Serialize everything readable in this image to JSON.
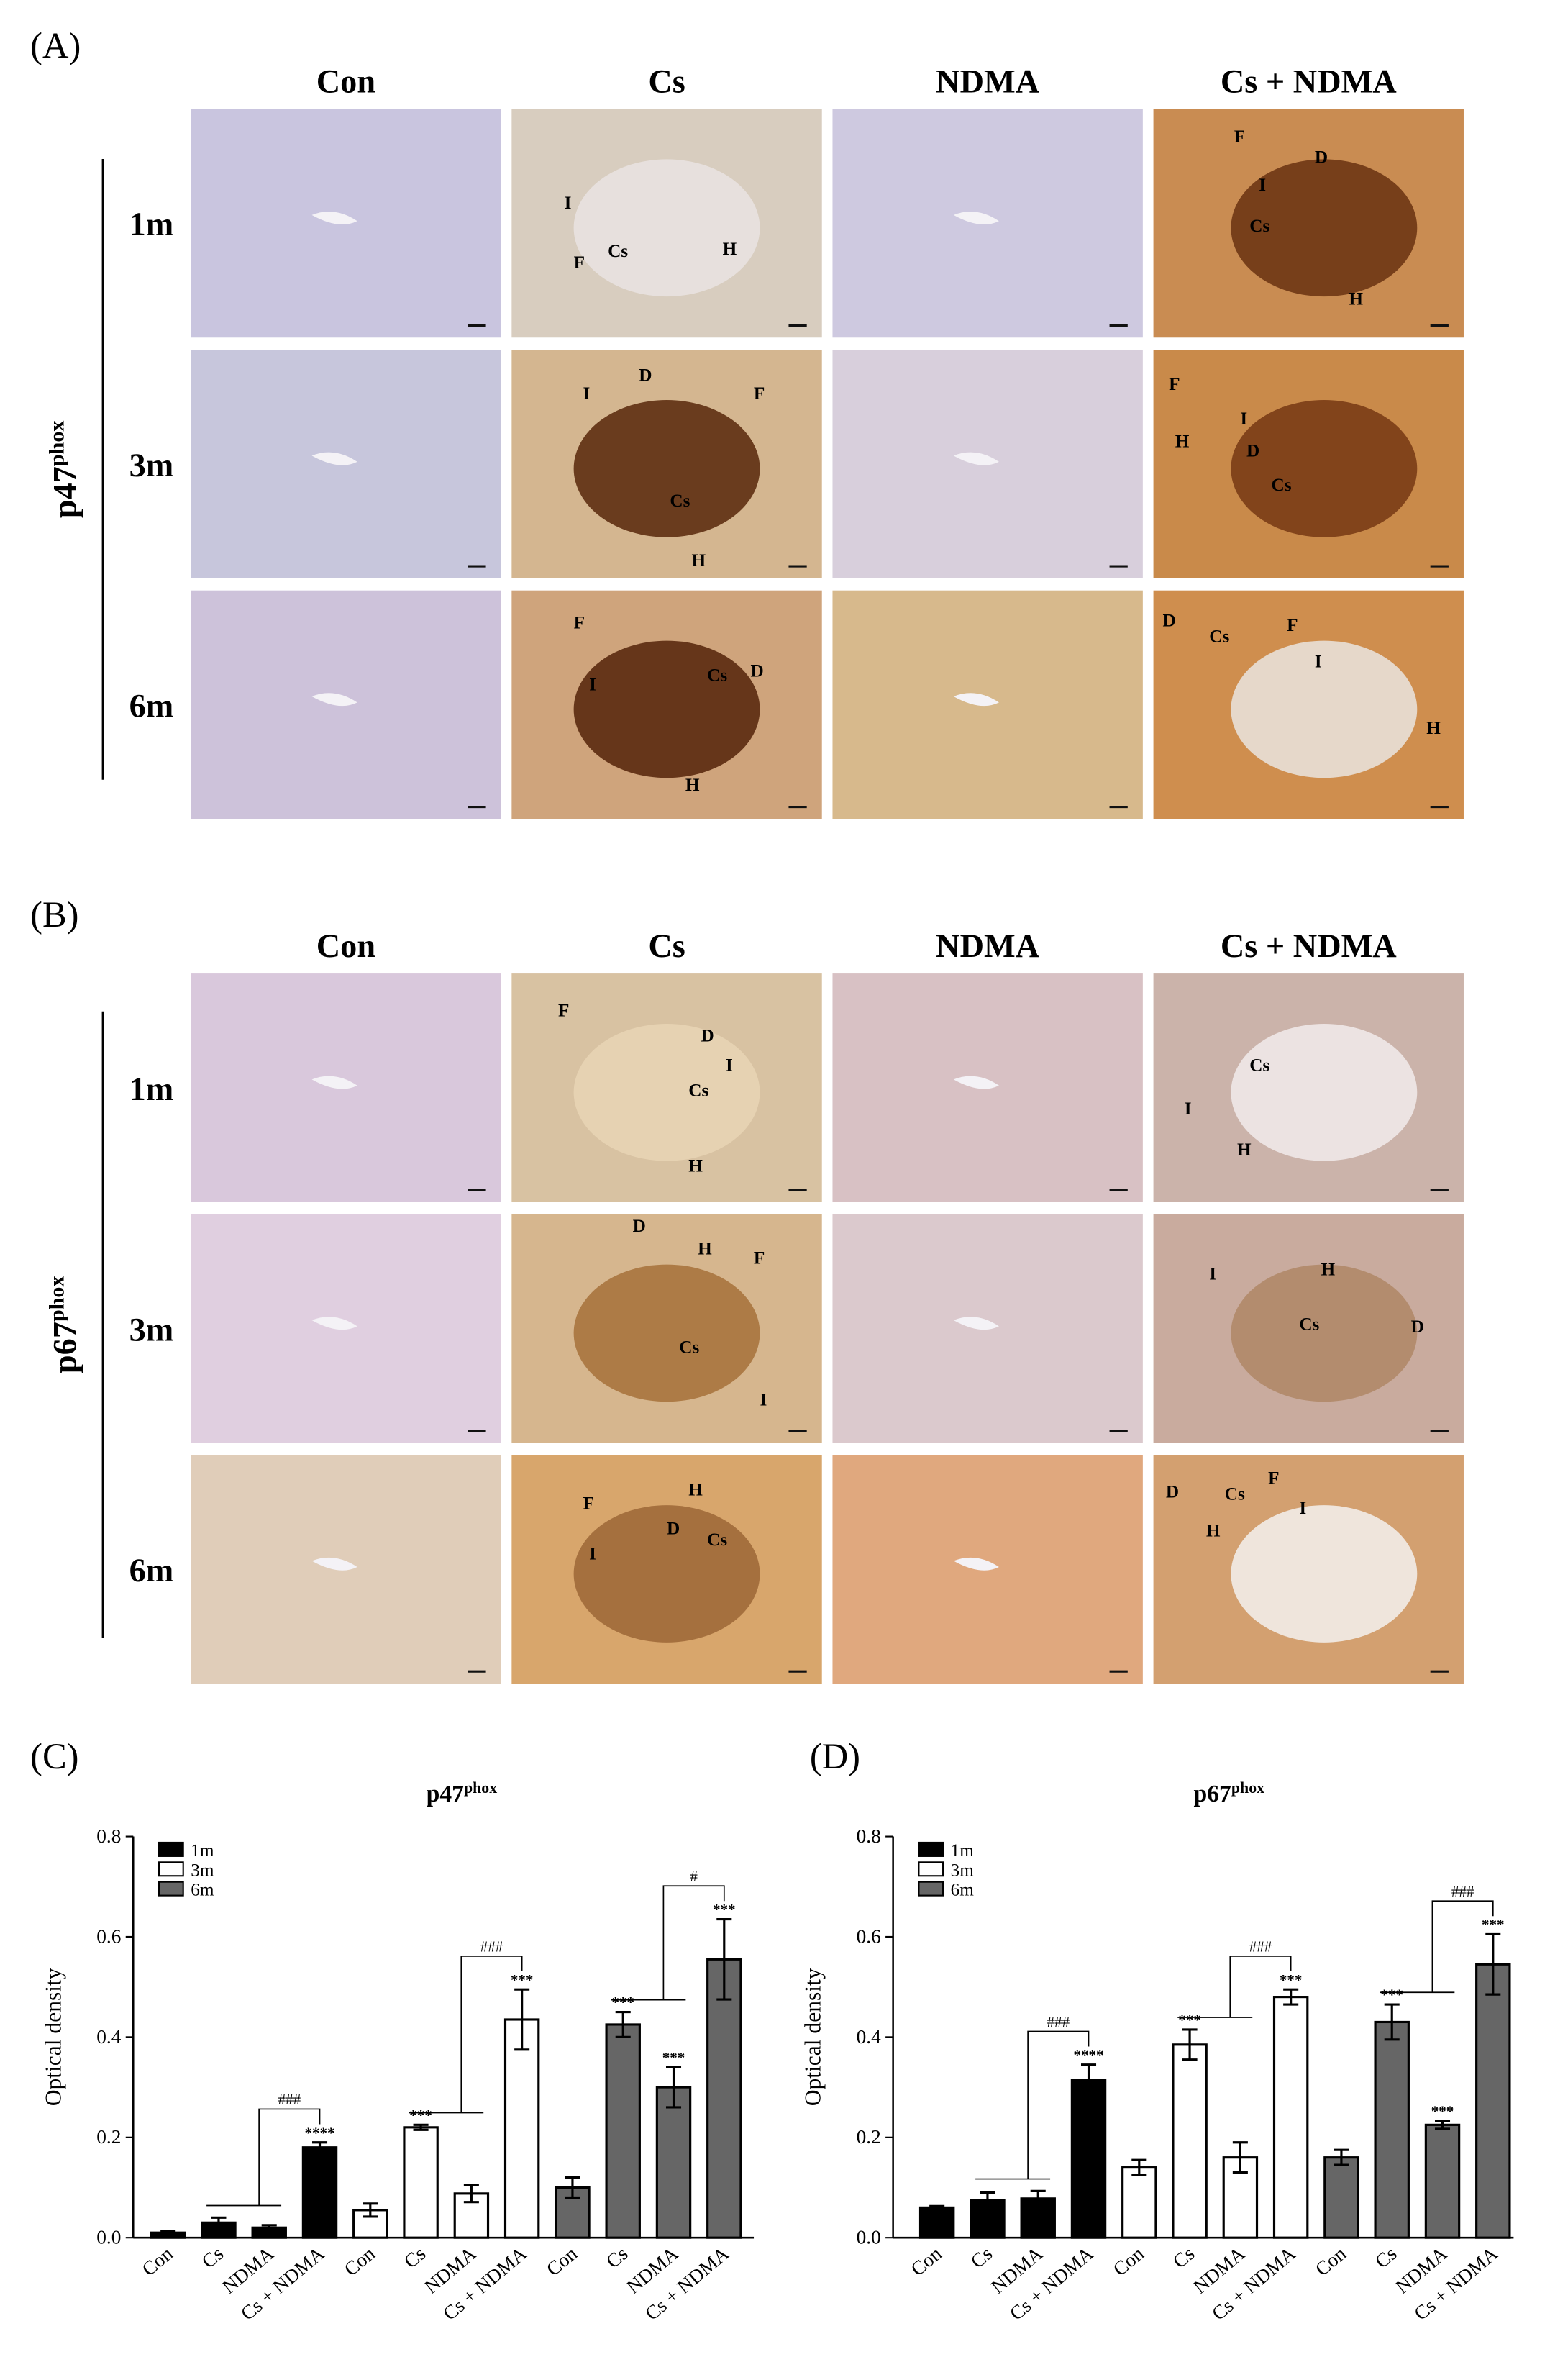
{
  "panels": [
    {
      "label": "(A)",
      "marker": {
        "base": "p47",
        "sup": "phox"
      },
      "columns": [
        "Con",
        "Cs",
        "NDMA",
        "Cs + NDMA"
      ],
      "rows": [
        "1m",
        "3m",
        "6m"
      ],
      "annotations": [
        [
          [],
          [
            "I",
            "Cs",
            "F",
            "H"
          ],
          [],
          [
            "F",
            "D",
            "I",
            "Cs",
            "H"
          ]
        ],
        [
          [],
          [
            "D",
            "I",
            "F",
            "Cs",
            "H"
          ],
          [],
          [
            "F",
            "I",
            "H",
            "D",
            "Cs"
          ]
        ],
        [
          [],
          [
            "F",
            "Cs",
            "D",
            "I",
            "H"
          ],
          [],
          [
            "D",
            "Cs",
            "F",
            "I",
            "H"
          ]
        ]
      ]
    },
    {
      "label": "(B)",
      "marker": {
        "base": "p67",
        "sup": "phox"
      },
      "columns": [
        "Con",
        "Cs",
        "NDMA",
        "Cs + NDMA"
      ],
      "rows": [
        "1m",
        "3m",
        "6m"
      ],
      "annotations": [
        [
          [],
          [
            "F",
            "D",
            "I",
            "Cs",
            "H"
          ],
          [],
          [
            "Cs",
            "I",
            "H"
          ]
        ],
        [
          [],
          [
            "D",
            "H",
            "F",
            "Cs",
            "I"
          ],
          [],
          [
            "I",
            "H",
            "Cs",
            "D"
          ]
        ],
        [
          [],
          [
            "H",
            "F",
            "D",
            "Cs",
            "I"
          ],
          [],
          [
            "D",
            "Cs",
            "F",
            "I",
            "H"
          ]
        ]
      ]
    }
  ],
  "chart_data": [
    {
      "type": "bar",
      "panel_label": "(C)",
      "title": {
        "base": "p47",
        "sup": "phox"
      },
      "y_label": "Optical density",
      "categories": [
        "Con",
        "Cs",
        "NDMA",
        "Cs + NDMA"
      ],
      "series": [
        {
          "name": "1m",
          "color": "#000000",
          "values": [
            0.01,
            0.03,
            0.02,
            0.18
          ],
          "errors": [
            0.003,
            0.01,
            0.005,
            0.01
          ],
          "significance": [
            null,
            null,
            null,
            "****"
          ],
          "comparison_label": "###"
        },
        {
          "name": "3m",
          "color": "#ffffff",
          "values": [
            0.055,
            0.22,
            0.088,
            0.435
          ],
          "errors": [
            0.013,
            0.005,
            0.017,
            0.06
          ],
          "significance": [
            null,
            "***",
            null,
            "***"
          ],
          "comparison_label": "###"
        },
        {
          "name": "6m",
          "color": "#666666",
          "values": [
            0.1,
            0.425,
            0.3,
            0.555
          ],
          "errors": [
            0.02,
            0.025,
            0.04,
            0.08
          ],
          "significance": [
            null,
            "***",
            "***",
            "***"
          ],
          "comparison_label": "#"
        }
      ],
      "ylim": [
        0,
        0.8
      ],
      "yticks": [
        {
          "value": 0,
          "label": "0.0"
        },
        0.2,
        0.4,
        0.6,
        0.8
      ],
      "legend": "upper left"
    },
    {
      "type": "bar",
      "panel_label": "(D)",
      "title": {
        "base": "p67",
        "sup": "phox"
      },
      "y_label": "Optical density",
      "categories": [
        "Con",
        "Cs",
        "NDMA",
        "Cs + NDMA"
      ],
      "series": [
        {
          "name": "1m",
          "color": "#000000",
          "values": [
            0.06,
            0.075,
            0.078,
            0.315
          ],
          "errors": [
            0.003,
            0.015,
            0.015,
            0.03
          ],
          "significance": [
            null,
            null,
            null,
            "****"
          ],
          "comparison_label": "###"
        },
        {
          "name": "3m",
          "color": "#ffffff",
          "values": [
            0.14,
            0.385,
            0.16,
            0.48
          ],
          "errors": [
            0.015,
            0.03,
            0.03,
            0.015
          ],
          "significance": [
            null,
            "***",
            null,
            "***"
          ],
          "comparison_label": "###"
        },
        {
          "name": "6m",
          "color": "#666666",
          "values": [
            0.16,
            0.43,
            0.225,
            0.545
          ],
          "errors": [
            0.015,
            0.035,
            0.008,
            0.06
          ],
          "significance": [
            null,
            "***",
            "***",
            "***"
          ],
          "comparison_label": "###"
        }
      ],
      "ylim": [
        0,
        0.8
      ],
      "yticks": [
        {
          "value": 0,
          "label": "0.0"
        },
        0.2,
        0.4,
        0.6,
        0.8
      ],
      "legend": "upper left"
    }
  ]
}
